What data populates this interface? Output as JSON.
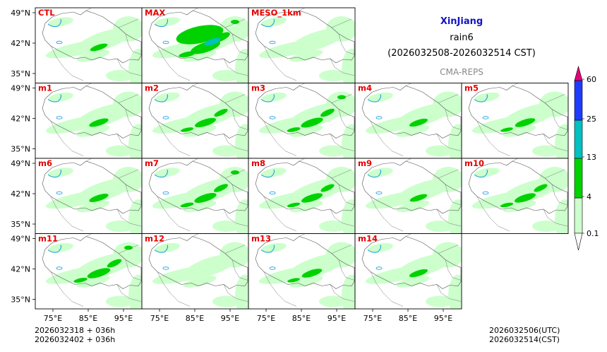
{
  "header": {
    "region": "XinJiang",
    "variable": "rain6",
    "period": "(2026032508-2026032514 CST)",
    "model": "CMA-REPS"
  },
  "panels": [
    {
      "label": "CTL",
      "intensity": 0.35
    },
    {
      "label": "MAX",
      "intensity": 1.0
    },
    {
      "label": "MESO_1km",
      "intensity": 0.3
    },
    {
      "label": "m1",
      "intensity": 0.45
    },
    {
      "label": "m2",
      "intensity": 0.55
    },
    {
      "label": "m3",
      "intensity": 0.6
    },
    {
      "label": "m4",
      "intensity": 0.4
    },
    {
      "label": "m5",
      "intensity": 0.5
    },
    {
      "label": "m6",
      "intensity": 0.45
    },
    {
      "label": "m7",
      "intensity": 0.6
    },
    {
      "label": "m8",
      "intensity": 0.55
    },
    {
      "label": "m9",
      "intensity": 0.35
    },
    {
      "label": "m10",
      "intensity": 0.55
    },
    {
      "label": "m11",
      "intensity": 0.65
    },
    {
      "label": "m12",
      "intensity": 0.3
    },
    {
      "label": "m13",
      "intensity": 0.5
    },
    {
      "label": "m14",
      "intensity": 0.4
    }
  ],
  "axes": {
    "lat_ticks": [
      "49°N",
      "42°N",
      "35°N"
    ],
    "lon_ticks": [
      "75°E",
      "85°E",
      "95°E"
    ]
  },
  "colorbar": {
    "levels": [
      "0.1",
      "4",
      "13",
      "25",
      "60"
    ],
    "colors": {
      "c1": "#ccffcc",
      "c2": "#00d200",
      "c3": "#00c0c0",
      "c4": "#1e3cff",
      "c5": "#e6007a"
    }
  },
  "footer": {
    "init1": "2026032318  +  036h",
    "init2": "2026032402  +  036h",
    "utc": "2026032506(UTC)",
    "cst": "2026032514(CST)"
  }
}
